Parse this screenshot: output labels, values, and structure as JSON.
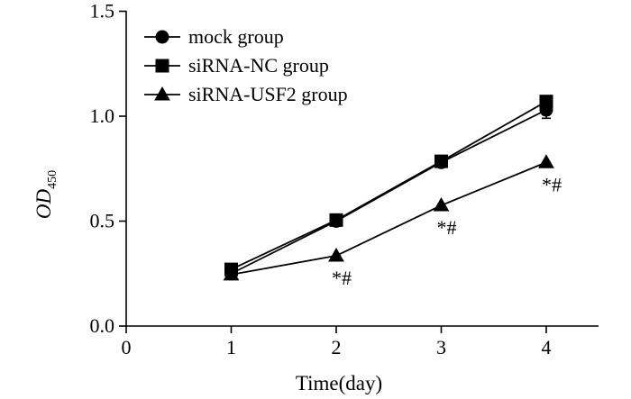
{
  "chart_data": {
    "type": "line",
    "x": [
      1,
      2,
      3,
      4
    ],
    "xlim": [
      0,
      4.5
    ],
    "ylim": [
      0.0,
      1.5
    ],
    "xticks": [
      "0",
      "1",
      "2",
      "3",
      "4"
    ],
    "yticks": [
      "0.0",
      "0.5",
      "1.0",
      "1.5"
    ],
    "xlabel": "Time(day)",
    "ylabel_main": "OD",
    "ylabel_sub": "450",
    "legend_position": "top-left",
    "series": [
      {
        "name": "mock group",
        "marker": "circle",
        "values": [
          0.25,
          0.5,
          0.78,
          1.03
        ],
        "errors": [
          0,
          0,
          0,
          0.04
        ]
      },
      {
        "name": "siRNA-NC group",
        "marker": "square",
        "values": [
          0.27,
          0.505,
          0.785,
          1.07
        ],
        "errors": [
          0,
          0,
          0,
          0
        ]
      },
      {
        "name": "siRNA-USF2 group",
        "marker": "triangle",
        "values": [
          0.245,
          0.335,
          0.575,
          0.78
        ],
        "errors": [
          0,
          0,
          0,
          0
        ]
      }
    ],
    "annotations": [
      {
        "x": 2,
        "y": 0.335,
        "text": "*#"
      },
      {
        "x": 3,
        "y": 0.575,
        "text": "*#"
      },
      {
        "x": 4,
        "y": 0.78,
        "text": "*#"
      }
    ]
  }
}
